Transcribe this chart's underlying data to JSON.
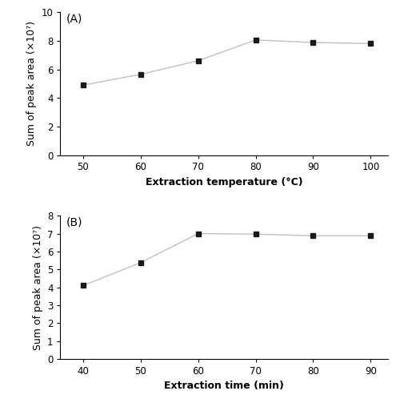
{
  "panel_A": {
    "x": [
      50,
      60,
      70,
      80,
      90,
      100
    ],
    "y": [
      4.9,
      5.65,
      6.6,
      8.05,
      7.87,
      7.8
    ],
    "xlabel": "Extraction temperature (°C)",
    "ylabel": "Sum of peak area (×10⁷)",
    "label": "(A)",
    "xlim": [
      46,
      103
    ],
    "ylim": [
      0,
      10
    ],
    "xticks": [
      50,
      60,
      70,
      80,
      90,
      100
    ],
    "yticks": [
      0,
      2,
      4,
      6,
      8,
      10
    ]
  },
  "panel_B": {
    "x": [
      40,
      50,
      60,
      70,
      80,
      90
    ],
    "y": [
      4.1,
      5.38,
      7.0,
      6.97,
      6.88,
      6.88
    ],
    "xlabel": "Extraction time (min)",
    "ylabel": "Sum of peak area (×10⁷)",
    "label": "(B)",
    "xlim": [
      36,
      93
    ],
    "ylim": [
      0,
      8
    ],
    "xticks": [
      40,
      50,
      60,
      70,
      80,
      90
    ],
    "yticks": [
      0,
      1,
      2,
      3,
      4,
      5,
      6,
      7,
      8
    ]
  },
  "line_color": "#c0c0c0",
  "marker_color": "#1a1a1a",
  "marker": "s",
  "marker_size": 5,
  "line_width": 1.0,
  "font_size_label": 9,
  "font_size_tick": 8.5,
  "font_size_panel_label": 10
}
